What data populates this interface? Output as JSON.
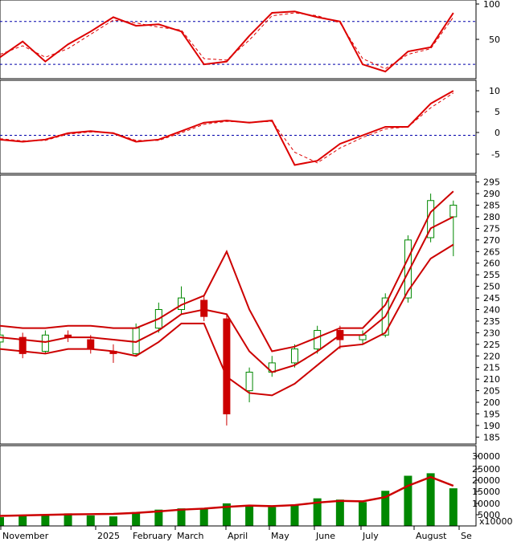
{
  "chart_data": [
    {
      "type": "line",
      "panel": "stochastic",
      "axis_labels": [
        "100",
        "50"
      ],
      "ylim": [
        0,
        110
      ],
      "ref_lines": [
        80,
        20
      ],
      "x": [
        0,
        2,
        4,
        6,
        8,
        10,
        12,
        14,
        16,
        18,
        20,
        22,
        24,
        26,
        28,
        30,
        32,
        34,
        36,
        38,
        40
      ],
      "series": [
        {
          "values": [
            30,
            52,
            24,
            48,
            66,
            86,
            74,
            76,
            66,
            20,
            24,
            60,
            92,
            94,
            86,
            80,
            20,
            10,
            38,
            44,
            92
          ],
          "color": "#dd0000"
        },
        {
          "values": [
            34,
            46,
            30,
            42,
            62,
            82,
            78,
            72,
            68,
            28,
            26,
            54,
            88,
            92,
            88,
            78,
            28,
            14,
            34,
            42,
            86
          ],
          "color": "#dd0000",
          "dashed": true
        }
      ]
    },
    {
      "type": "line",
      "panel": "macd",
      "axis_labels": [
        "10",
        "5",
        "0",
        "-5"
      ],
      "ylim": [
        -9,
        13
      ],
      "ref_lines": [
        0
      ],
      "x": [
        0,
        2,
        4,
        6,
        8,
        10,
        12,
        14,
        16,
        18,
        20,
        22,
        24,
        26,
        28,
        30,
        32,
        34,
        36,
        38,
        40
      ],
      "series": [
        {
          "values": [
            -1,
            -1.5,
            -1,
            0.5,
            1,
            0.5,
            -1.5,
            -1,
            1,
            3,
            3.5,
            3,
            3.5,
            -7,
            -6,
            -2,
            0,
            2,
            2,
            7.5,
            10.5
          ],
          "color": "#dd0000"
        },
        {
          "values": [
            -0.8,
            -1.3,
            -1.2,
            0.3,
            0.8,
            0.6,
            -1.2,
            -1.2,
            0.6,
            2.6,
            3.3,
            3.1,
            3.3,
            -4,
            -6.5,
            -3,
            -0.5,
            1.5,
            2,
            6.5,
            10
          ],
          "color": "#dd0000",
          "dashed": true
        }
      ]
    },
    {
      "type": "candlestick",
      "panel": "price",
      "axis_labels": [
        "295",
        "290",
        "285",
        "280",
        "275",
        "270",
        "265",
        "260",
        "255",
        "250",
        "245",
        "240",
        "235",
        "230",
        "225",
        "220",
        "215",
        "210",
        "205",
        "200",
        "195",
        "190",
        "185"
      ],
      "ylim": [
        182,
        298
      ],
      "x": [
        0,
        2,
        4,
        6,
        8,
        10,
        12,
        14,
        16,
        18,
        20,
        22,
        24,
        26,
        28,
        30,
        32,
        34,
        36,
        38,
        40
      ],
      "candles": [
        {
          "x": 0,
          "open": 226,
          "close": 229,
          "high": 231,
          "low": 223
        },
        {
          "x": 2,
          "open": 228,
          "close": 221,
          "high": 230,
          "low": 219
        },
        {
          "x": 4,
          "open": 222,
          "close": 229,
          "high": 231,
          "low": 221
        },
        {
          "x": 6,
          "open": 229,
          "close": 228,
          "high": 231,
          "low": 226
        },
        {
          "x": 8,
          "open": 227,
          "close": 223,
          "high": 229,
          "low": 221
        },
        {
          "x": 10,
          "open": 222,
          "close": 221,
          "high": 225,
          "low": 217
        },
        {
          "x": 12,
          "open": 221,
          "close": 232,
          "high": 234,
          "low": 220
        },
        {
          "x": 14,
          "open": 232,
          "close": 240,
          "high": 243,
          "low": 230
        },
        {
          "x": 16,
          "open": 240,
          "close": 245,
          "high": 250,
          "low": 238
        },
        {
          "x": 18,
          "open": 244,
          "close": 237,
          "high": 246,
          "low": 235
        },
        {
          "x": 20,
          "open": 236,
          "close": 195,
          "high": 238,
          "low": 190
        },
        {
          "x": 22,
          "open": 205,
          "close": 213,
          "high": 215,
          "low": 200
        },
        {
          "x": 24,
          "open": 213,
          "close": 217,
          "high": 220,
          "low": 211
        },
        {
          "x": 26,
          "open": 217,
          "close": 223,
          "high": 225,
          "low": 215
        },
        {
          "x": 28,
          "open": 223,
          "close": 231,
          "high": 233,
          "low": 221
        },
        {
          "x": 30,
          "open": 231,
          "close": 227,
          "high": 233,
          "low": 223
        },
        {
          "x": 32,
          "open": 227,
          "close": 229,
          "high": 231,
          "low": 225
        },
        {
          "x": 34,
          "open": 229,
          "close": 245,
          "high": 247,
          "low": 228
        },
        {
          "x": 36,
          "open": 245,
          "close": 270,
          "high": 272,
          "low": 243
        },
        {
          "x": 38,
          "open": 271,
          "close": 287,
          "high": 290,
          "low": 269
        },
        {
          "x": 40,
          "open": 280,
          "close": 285,
          "high": 287,
          "low": 263
        }
      ],
      "series": [
        {
          "name_shown": false,
          "values": [
            233,
            232,
            232,
            233,
            233,
            232,
            232,
            236,
            242,
            246,
            265,
            240,
            222,
            224,
            228,
            232,
            232,
            242,
            262,
            282,
            291
          ],
          "color": "#cc0000"
        },
        {
          "name_shown": false,
          "values": [
            228,
            227,
            226,
            228,
            228,
            227,
            226,
            231,
            238,
            240,
            238,
            222,
            213,
            216,
            222,
            229,
            229,
            237,
            256,
            275,
            280
          ],
          "color": "#cc0000"
        },
        {
          "name_shown": false,
          "values": [
            223,
            222,
            221,
            223,
            223,
            222,
            220,
            226,
            234,
            234,
            211,
            204,
            203,
            208,
            216,
            224,
            225,
            230,
            248,
            262,
            268
          ],
          "color": "#cc0000"
        }
      ]
    },
    {
      "type": "bar",
      "panel": "volume",
      "axis_labels": [
        "30000",
        "25000",
        "20000",
        "15000",
        "10000",
        "5000"
      ],
      "unit_label": "x10000",
      "ylim": [
        0,
        32000
      ],
      "x": [
        0,
        2,
        4,
        6,
        8,
        10,
        12,
        14,
        16,
        18,
        20,
        22,
        24,
        26,
        28,
        30,
        32,
        34,
        36,
        38,
        40
      ],
      "values": [
        3500,
        4000,
        4500,
        5000,
        4200,
        3800,
        5500,
        6500,
        7000,
        6800,
        9000,
        8000,
        7500,
        8500,
        11000,
        10500,
        9500,
        14000,
        20000,
        21000,
        15000
      ],
      "ma": [
        4000,
        4200,
        4400,
        4600,
        4700,
        4800,
        5200,
        5800,
        6500,
        6900,
        7600,
        8100,
        7900,
        8300,
        9300,
        10000,
        9800,
        11500,
        16000,
        19500,
        16000
      ],
      "categories_shown": [
        "November",
        "2025",
        "February",
        "March",
        "April",
        "May",
        "June",
        "July",
        "August",
        "Se"
      ]
    }
  ]
}
